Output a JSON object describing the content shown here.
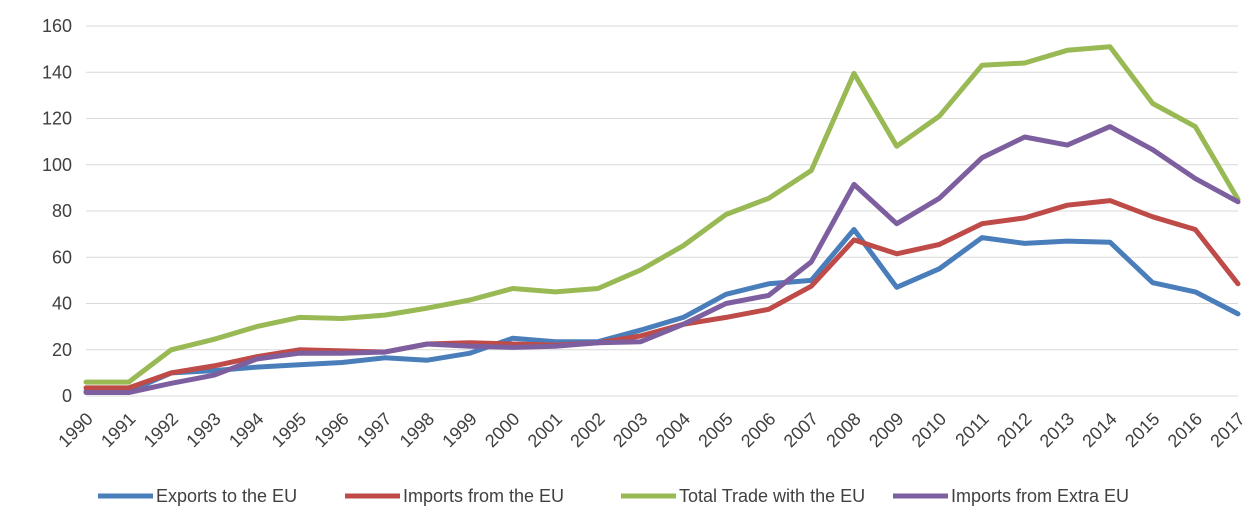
{
  "chart_data": {
    "type": "line",
    "title": "",
    "xlabel": "",
    "ylabel": "",
    "ylim": [
      0,
      160
    ],
    "yticks": [
      "0",
      "20",
      "40",
      "60",
      "80",
      "100",
      "120",
      "140",
      "160"
    ],
    "grid": "horizontal",
    "legend_position": "bottom",
    "categories": [
      "1990",
      "1991",
      "1992",
      "1993",
      "1994",
      "1995",
      "1996",
      "1997",
      "1998",
      "1999",
      "2000",
      "2001",
      "2002",
      "2003",
      "2004",
      "2005",
      "2006",
      "2007",
      "2008",
      "2009",
      "2010",
      "2011",
      "2012",
      "2013",
      "2014",
      "2015",
      "2016",
      "2017"
    ],
    "series": [
      {
        "name": "Exports to the EU",
        "color": "#4A7EBB",
        "values": [
          2,
          2,
          10,
          11,
          12.5,
          13.5,
          14.5,
          16.5,
          15.5,
          18.5,
          25,
          23.5,
          23.5,
          28.5,
          34,
          44,
          48.5,
          50,
          72,
          47,
          55,
          68.5,
          66,
          67,
          66.5,
          49,
          45,
          35.5
        ]
      },
      {
        "name": "Imports from the EU",
        "color": "#BE4B48",
        "values": [
          3.5,
          3.5,
          10,
          13,
          17,
          20,
          19.5,
          19,
          22.5,
          23,
          22.5,
          22,
          23,
          26,
          31,
          34,
          37.5,
          47.5,
          67.5,
          61.5,
          65.5,
          74.5,
          77,
          82.5,
          84.5,
          77.5,
          72,
          48.5
        ]
      },
      {
        "name": "Total Trade with the EU",
        "color": "#98B954",
        "values": [
          6,
          6,
          20,
          24.5,
          30,
          34,
          33.5,
          35,
          38,
          41.5,
          46.5,
          45,
          46.5,
          54.5,
          65,
          78.5,
          85.5,
          97.5,
          139.5,
          108,
          121,
          143,
          144,
          149.5,
          151,
          126.5,
          116.5,
          85
        ]
      },
      {
        "name": "Imports from Extra EU",
        "color": "#7D5FA0",
        "values": [
          1.5,
          1.5,
          5.5,
          9,
          16,
          18.5,
          18.5,
          19,
          22.5,
          21.5,
          21,
          21.5,
          23,
          23.5,
          31,
          40,
          43.5,
          58,
          91.5,
          74.5,
          85.5,
          103,
          112,
          108.5,
          116.5,
          106.5,
          94,
          84
        ]
      }
    ]
  }
}
